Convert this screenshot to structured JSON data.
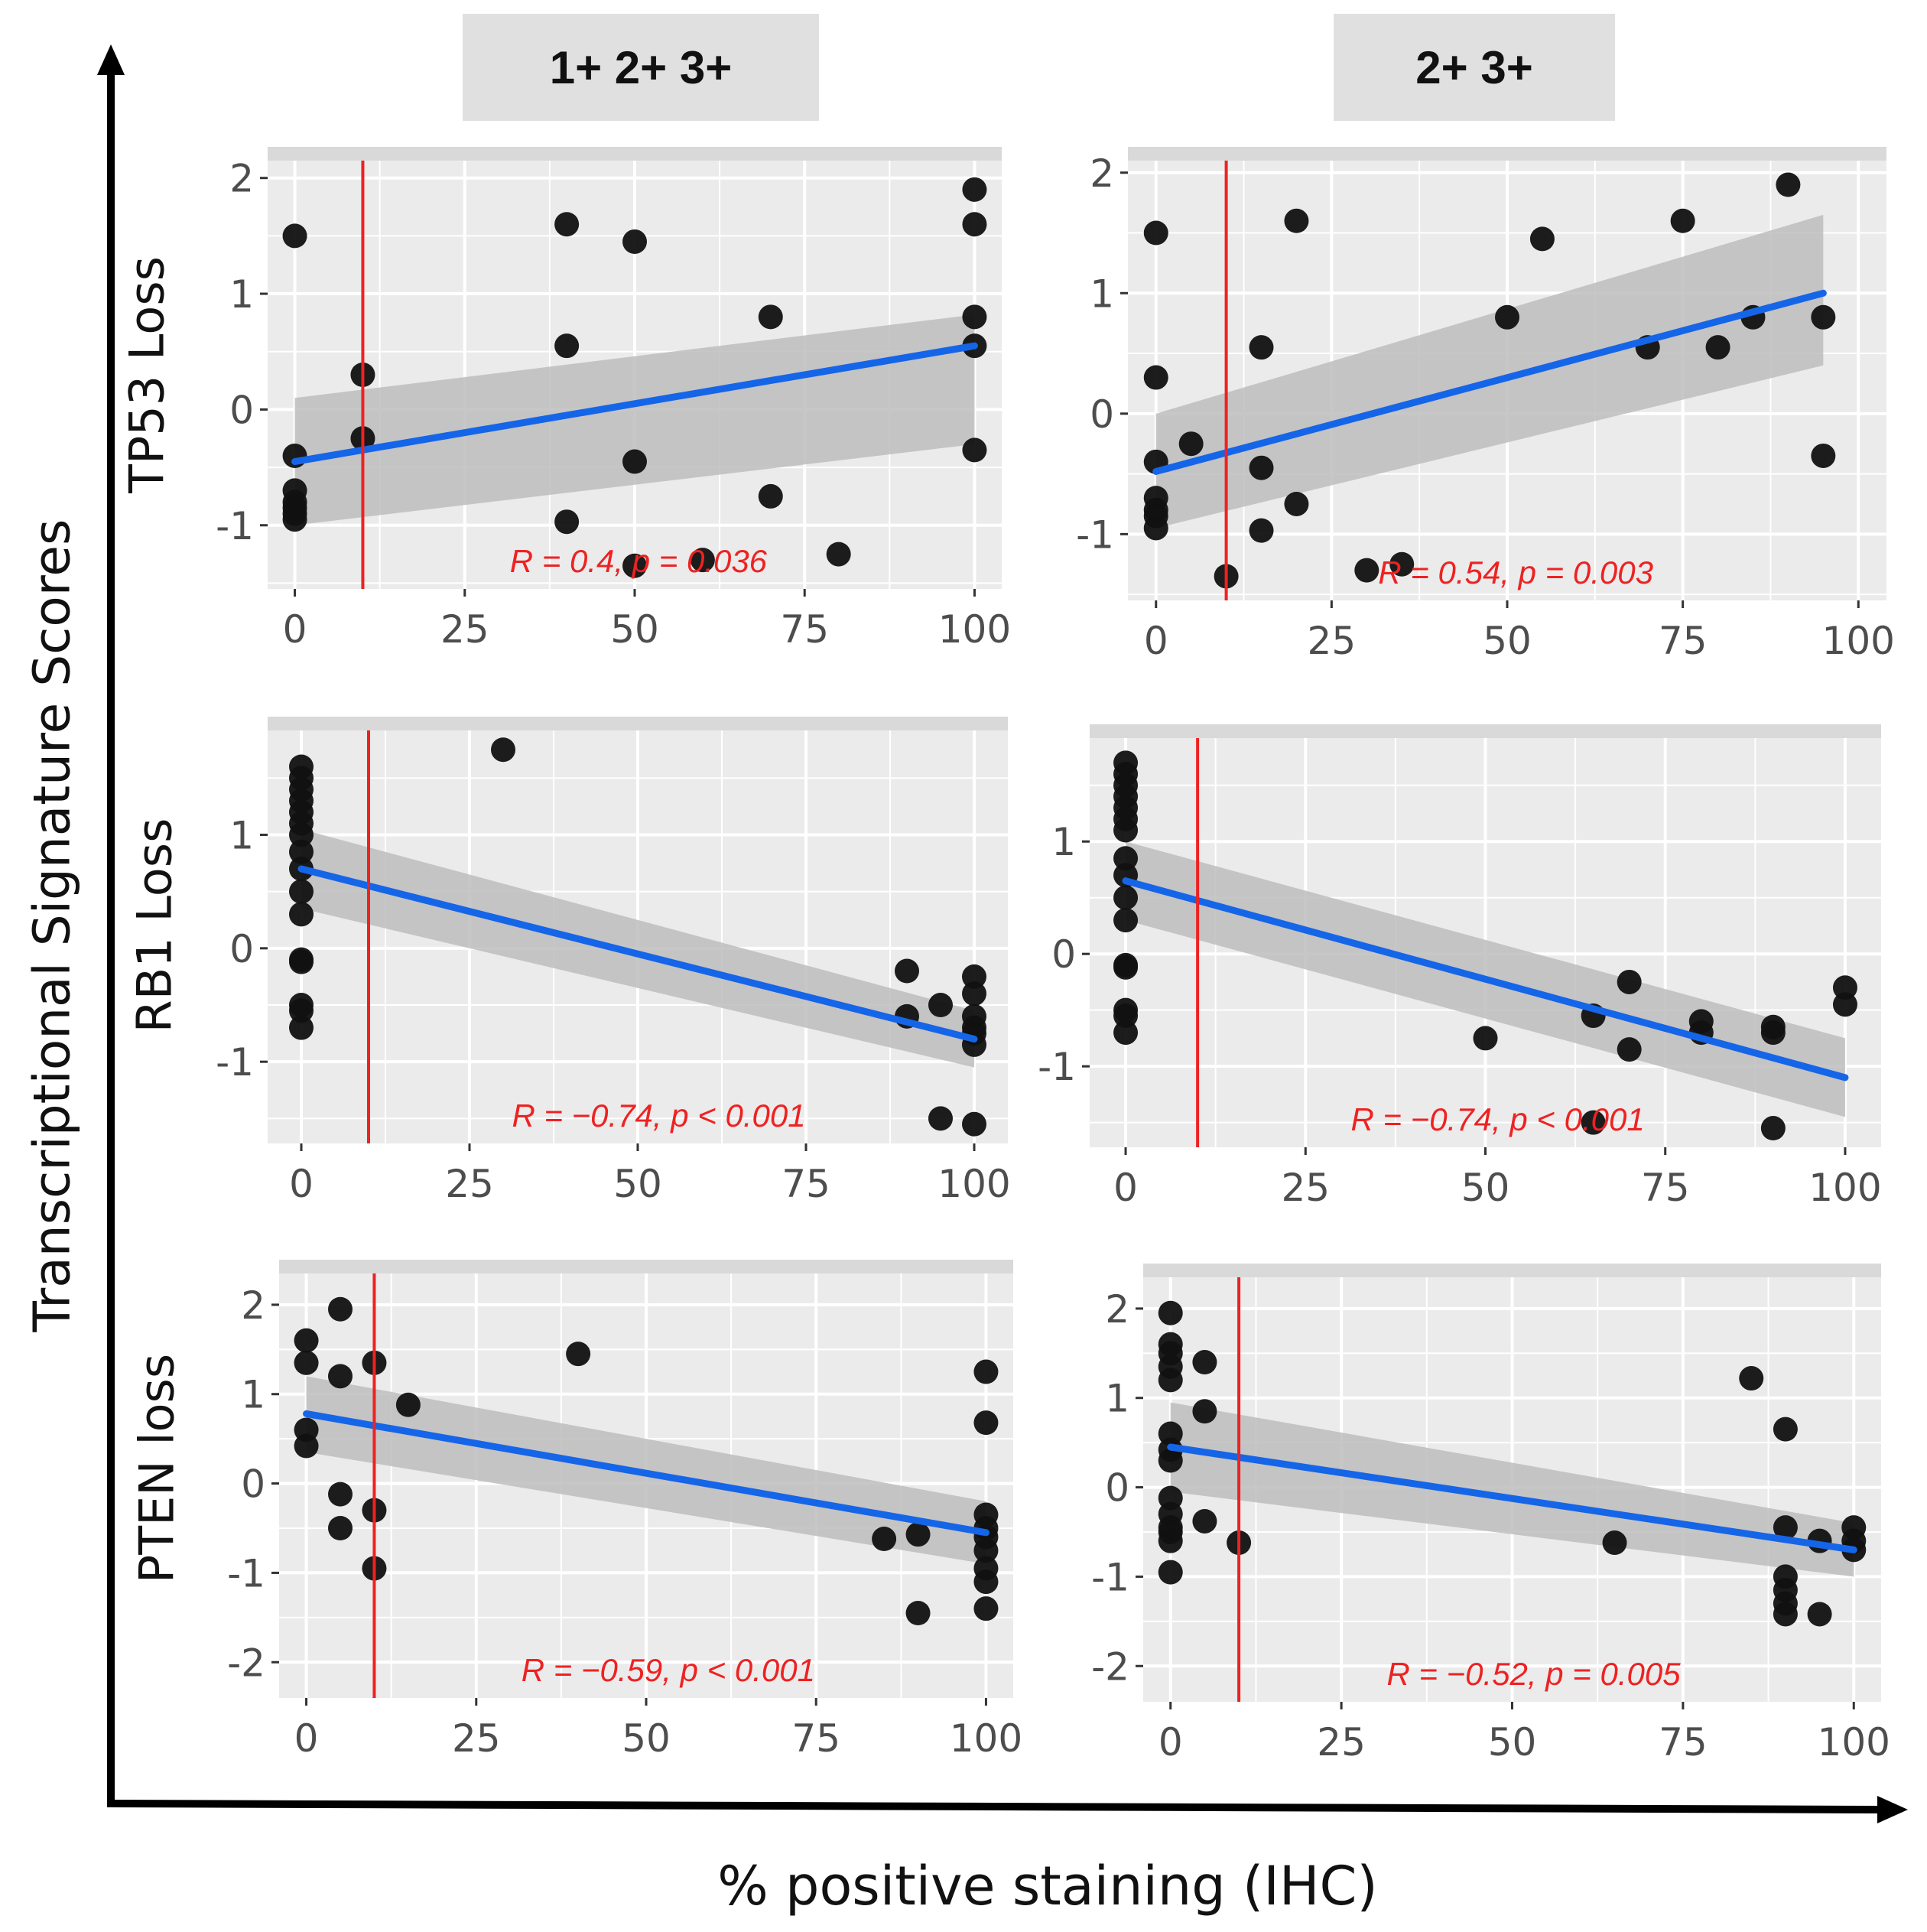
{
  "column_headers": [
    "1+ 2+ 3+",
    "2+ 3+"
  ],
  "row_labels": [
    "TP53 Loss",
    "RB1 Loss",
    "PTEN loss"
  ],
  "y_axis_title": "Transcriptional Signature Scores",
  "x_axis_title": "% positive staining (IHC)",
  "colors": {
    "points": "#111111",
    "fit_line": "#1565e8",
    "ci_band": "#bdbdbd",
    "threshold": "#ee2222",
    "panel_bg": "#ebebeb",
    "grid": "#ffffff",
    "stat_text": "#ee2222"
  },
  "chart_data": [
    {
      "type": "scatter",
      "panel": "1+ 2+ 3+ / TP53 Loss",
      "row": 0,
      "col": 0,
      "xlim": [
        -4,
        104
      ],
      "ylim": [
        -1.55,
        2.15
      ],
      "xticks": [
        0,
        25,
        50,
        75,
        100
      ],
      "yticks": [
        -1,
        0,
        1,
        2
      ],
      "threshold_x": 10,
      "stat_label": "R = 0.4, p = 0.036",
      "fit": {
        "x1": 0,
        "y1": -0.45,
        "x2": 100,
        "y2": 0.55,
        "ci_lo1": -1.0,
        "ci_hi1": 0.1,
        "ci_lo2": -0.3,
        "ci_hi2": 0.82
      },
      "x": [
        0,
        0,
        0,
        0,
        0,
        0,
        0,
        10,
        10,
        40,
        40,
        40,
        50,
        50,
        50,
        60,
        70,
        70,
        80,
        100,
        100,
        100,
        100,
        100
      ],
      "y": [
        1.5,
        -0.4,
        -0.7,
        -0.8,
        -0.85,
        -0.9,
        -0.95,
        0.3,
        -0.25,
        1.6,
        0.55,
        -0.97,
        1.45,
        -0.45,
        -1.35,
        -1.3,
        0.8,
        -0.75,
        -1.25,
        1.9,
        1.6,
        0.8,
        0.55,
        -0.35
      ]
    },
    {
      "type": "scatter",
      "panel": "2+ 3+ / TP53 Loss",
      "row": 0,
      "col": 1,
      "xlim": [
        -4,
        104
      ],
      "ylim": [
        -1.55,
        2.1
      ],
      "xticks": [
        0,
        25,
        50,
        75,
        100
      ],
      "yticks": [
        -1,
        0,
        1,
        2
      ],
      "threshold_x": 10,
      "stat_label": "R = 0.54, p = 0.003",
      "fit": {
        "x1": 0,
        "y1": -0.48,
        "x2": 95,
        "y2": 1.0,
        "ci_lo1": -0.95,
        "ci_hi1": 0.0,
        "ci_lo2": 0.4,
        "ci_hi2": 1.65
      },
      "x": [
        0,
        0,
        0,
        0,
        0,
        0,
        0,
        5,
        10,
        15,
        15,
        15,
        20,
        20,
        30,
        35,
        50,
        55,
        70,
        75,
        80,
        85,
        90,
        95,
        95
      ],
      "y": [
        1.5,
        0.3,
        -0.4,
        -0.7,
        -0.8,
        -0.85,
        -0.95,
        -0.25,
        -1.35,
        0.55,
        -0.45,
        -0.97,
        1.6,
        -0.75,
        -1.3,
        -1.25,
        0.8,
        1.45,
        0.55,
        1.6,
        0.55,
        0.8,
        1.9,
        0.8,
        -0.35
      ]
    },
    {
      "type": "scatter",
      "panel": "1+ 2+ 3+ / RB1 Loss",
      "row": 1,
      "col": 0,
      "xlim": [
        -5,
        105
      ],
      "ylim": [
        -1.72,
        1.92
      ],
      "xticks": [
        0,
        25,
        50,
        75,
        100
      ],
      "yticks": [
        -1,
        0,
        1
      ],
      "threshold_x": 10,
      "stat_label": "R = −0.74, p < 0.001",
      "fit": {
        "x1": 0,
        "y1": 0.7,
        "x2": 100,
        "y2": -0.8,
        "ci_lo1": 0.35,
        "ci_hi1": 1.05,
        "ci_lo2": -1.05,
        "ci_hi2": -0.55
      },
      "x": [
        0,
        0,
        0,
        0,
        0,
        0,
        0,
        0,
        0,
        0,
        0,
        0,
        0,
        0,
        0,
        0,
        30,
        90,
        90,
        95,
        95,
        100,
        100,
        100,
        100,
        100,
        100,
        100
      ],
      "y": [
        1.6,
        1.5,
        1.4,
        1.3,
        1.2,
        1.1,
        1.0,
        0.85,
        0.7,
        0.5,
        0.3,
        -0.1,
        -0.12,
        -0.5,
        -0.55,
        -0.7,
        1.75,
        -0.2,
        -0.6,
        -0.5,
        -1.5,
        -0.25,
        -0.4,
        -0.6,
        -0.7,
        -0.75,
        -0.85,
        -1.55
      ]
    },
    {
      "type": "scatter",
      "panel": "2+ 3+ / RB1 Loss",
      "row": 1,
      "col": 1,
      "xlim": [
        -5,
        105
      ],
      "ylim": [
        -1.72,
        1.92
      ],
      "xticks": [
        0,
        25,
        50,
        75,
        100
      ],
      "yticks": [
        -1,
        0,
        1
      ],
      "threshold_x": 10,
      "stat_label": "R = −0.74, p < 0.001",
      "fit": {
        "x1": 0,
        "y1": 0.65,
        "x2": 100,
        "y2": -1.1,
        "ci_lo1": 0.3,
        "ci_hi1": 1.0,
        "ci_lo2": -1.45,
        "ci_hi2": -0.75
      },
      "x": [
        0,
        0,
        0,
        0,
        0,
        0,
        0,
        0,
        0,
        0,
        0,
        0,
        0,
        0,
        0,
        0,
        50,
        65,
        65,
        70,
        70,
        80,
        80,
        90,
        90,
        90,
        100,
        100
      ],
      "y": [
        1.7,
        1.6,
        1.5,
        1.4,
        1.3,
        1.2,
        1.1,
        0.85,
        0.7,
        0.5,
        0.3,
        -0.1,
        -0.12,
        -0.5,
        -0.55,
        -0.7,
        -0.75,
        -0.55,
        -1.5,
        -0.25,
        -0.85,
        -0.6,
        -0.7,
        -0.65,
        -0.7,
        -1.55,
        -0.3,
        -0.45
      ]
    },
    {
      "type": "scatter",
      "panel": "1+ 2+ 3+ / PTEN loss",
      "row": 2,
      "col": 0,
      "xlim": [
        -4,
        104
      ],
      "ylim": [
        -2.4,
        2.35
      ],
      "xticks": [
        0,
        25,
        50,
        75,
        100
      ],
      "yticks": [
        -2,
        -1,
        0,
        1,
        2
      ],
      "threshold_x": 10,
      "stat_label": "R = −0.59, p < 0.001",
      "fit": {
        "x1": 0,
        "y1": 0.78,
        "x2": 100,
        "y2": -0.55,
        "ci_lo1": 0.35,
        "ci_hi1": 1.2,
        "ci_lo2": -0.9,
        "ci_hi2": -0.2
      },
      "x": [
        0,
        0,
        0,
        0,
        5,
        5,
        5,
        5,
        10,
        10,
        10,
        15,
        40,
        85,
        90,
        90,
        100,
        100,
        100,
        100,
        100,
        100,
        100,
        100,
        100
      ],
      "y": [
        1.6,
        1.35,
        0.6,
        0.42,
        1.95,
        1.2,
        -0.12,
        -0.5,
        1.35,
        -0.3,
        -0.95,
        0.88,
        1.45,
        -0.62,
        -0.57,
        -1.45,
        1.25,
        0.68,
        -0.35,
        -0.5,
        -0.6,
        -0.75,
        -0.95,
        -1.1,
        -1.4
      ]
    },
    {
      "type": "scatter",
      "panel": "2+ 3+ / PTEN loss",
      "row": 2,
      "col": 1,
      "xlim": [
        -4,
        104
      ],
      "ylim": [
        -2.4,
        2.35
      ],
      "xticks": [
        0,
        25,
        50,
        75,
        100
      ],
      "yticks": [
        -2,
        -1,
        0,
        1,
        2
      ],
      "threshold_x": 10,
      "stat_label": "R = −0.52, p = 0.005",
      "fit": {
        "x1": 0,
        "y1": 0.45,
        "x2": 100,
        "y2": -0.7,
        "ci_lo1": -0.05,
        "ci_hi1": 0.95,
        "ci_lo2": -1.0,
        "ci_hi2": -0.4
      },
      "x": [
        0,
        0,
        0,
        0,
        0,
        0,
        0,
        0,
        0,
        0,
        0,
        0,
        0,
        0,
        5,
        5,
        5,
        10,
        65,
        85,
        90,
        90,
        90,
        90,
        90,
        90,
        95,
        95,
        100,
        100,
        100
      ],
      "y": [
        1.95,
        1.6,
        1.5,
        1.35,
        1.2,
        0.6,
        0.42,
        -0.12,
        -0.3,
        -0.45,
        -0.5,
        -0.6,
        -0.95,
        0.3,
        1.4,
        0.85,
        -0.38,
        -0.62,
        -0.62,
        1.22,
        0.65,
        -0.45,
        -1.0,
        -1.15,
        -1.3,
        -1.42,
        -0.6,
        -1.42,
        -0.45,
        -0.6,
        -0.7
      ]
    }
  ]
}
